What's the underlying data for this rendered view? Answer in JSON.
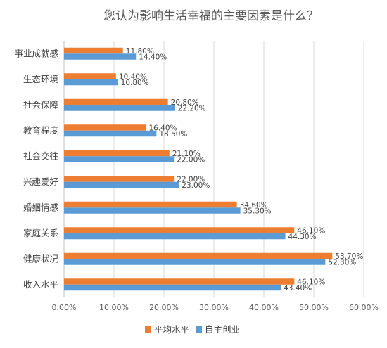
{
  "colors": {
    "average": "#ED7D31",
    "self_employed": "#5B9BD5"
  },
  "chart_data": {
    "type": "bar",
    "orientation": "horizontal",
    "title": "您认为影响生活幸福的主要因素是什么？",
    "categories": [
      "事业成就感",
      "生态环境",
      "社会保障",
      "教育程度",
      "社会交往",
      "兴趣爱好",
      "婚姻情感",
      "家庭关系",
      "健康状况",
      "收入水平"
    ],
    "series": [
      {
        "name": "平均水平",
        "values": [
          11.8,
          10.4,
          20.8,
          16.4,
          21.1,
          22.0,
          34.6,
          46.1,
          53.7,
          46.1
        ],
        "labels": [
          "11.80%",
          "10.40%",
          "20.80%",
          "16.40%",
          "21.10%",
          "22.00%",
          "34.60%",
          "46.10%",
          "53.70%",
          "46.10%"
        ]
      },
      {
        "name": "自主创业",
        "values": [
          14.4,
          10.8,
          22.2,
          18.5,
          22.0,
          23.0,
          35.3,
          44.3,
          52.3,
          43.4
        ],
        "labels": [
          "14.40%",
          "10.80%",
          "22.20%",
          "18.50%",
          "22.00%",
          "23.00%",
          "35.30%",
          "44.30%",
          "52.30%",
          "43.40%"
        ]
      }
    ],
    "xlim": [
      0,
      60
    ],
    "xticks": [
      "0.00%",
      "10.00%",
      "20.00%",
      "30.00%",
      "40.00%",
      "50.00%",
      "60.00%"
    ],
    "grid": true,
    "legend": "bottom"
  }
}
